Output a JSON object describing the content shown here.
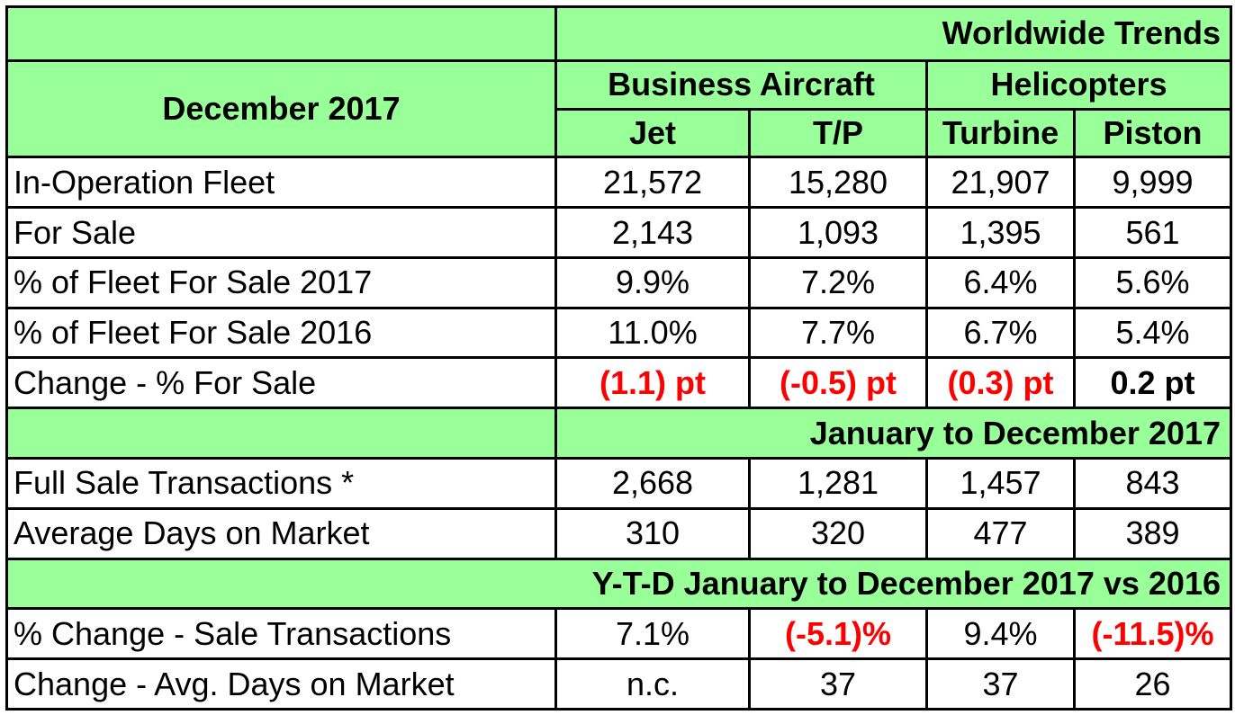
{
  "table": {
    "title": "Worldwide Trends",
    "period_label": "December 2017",
    "groups": {
      "business": "Business Aircraft",
      "helicopters": "Helicopters"
    },
    "columns": [
      "Jet",
      "T/P",
      "Turbine",
      "Piston"
    ],
    "section1_rows": [
      {
        "label": "In-Operation Fleet",
        "values": [
          "21,572",
          "15,280",
          "21,907",
          "9,999"
        ]
      },
      {
        "label": "For Sale",
        "values": [
          "2,143",
          "1,093",
          "1,395",
          "561"
        ]
      },
      {
        "label": "% of Fleet For Sale 2017",
        "values": [
          "9.9%",
          "7.2%",
          "6.4%",
          "5.6%"
        ]
      },
      {
        "label": "% of Fleet For Sale 2016",
        "values": [
          "11.0%",
          "7.7%",
          "6.7%",
          "5.4%"
        ]
      },
      {
        "label": "Change - % For Sale",
        "values": [
          "(1.1) pt",
          "(-0.5) pt",
          "(0.3) pt",
          "0.2 pt"
        ]
      }
    ],
    "section2_title": "January to December 2017",
    "section2_rows": [
      {
        "label": "Full Sale Transactions *",
        "values": [
          "2,668",
          "1,281",
          "1,457",
          "843"
        ]
      },
      {
        "label": "Average Days on Market",
        "values": [
          "310",
          "320",
          "477",
          "389"
        ]
      }
    ],
    "section3_title": "Y-T-D January to December 2017 vs 2016",
    "section3_rows": [
      {
        "label": "% Change  - Sale Transactions",
        "values": [
          "7.1%",
          "(-5.1)%",
          "9.4%",
          "(-11.5)%"
        ]
      },
      {
        "label": "Change -  Avg. Days on Market",
        "values": [
          "n.c.",
          "37",
          "37",
          "26"
        ]
      }
    ]
  },
  "colors": {
    "header_bg": "#99ff99",
    "negative_text": "#ff0000",
    "border": "#000000"
  }
}
